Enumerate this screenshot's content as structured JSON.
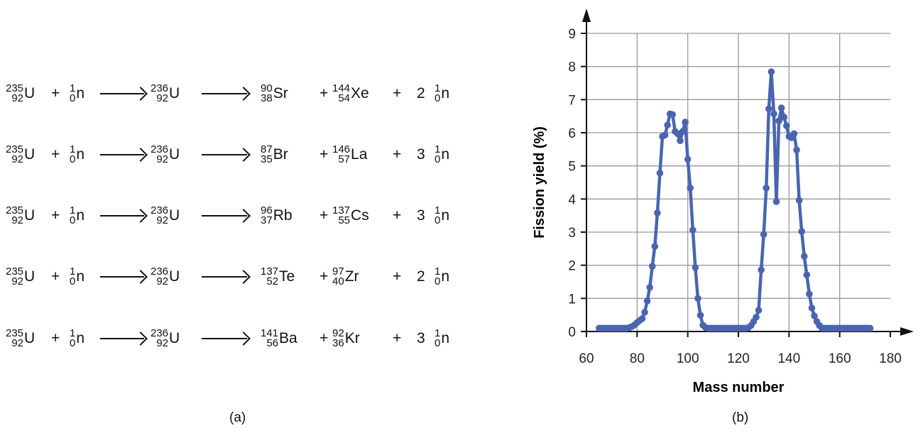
{
  "panel_a": {
    "caption": "(a)",
    "equations": [
      {
        "target": {
          "mass": "235",
          "atomic": "92",
          "symbol": "U"
        },
        "projectile": {
          "mass": "1",
          "atomic": "0",
          "symbol": "n"
        },
        "compound": {
          "mass": "236",
          "atomic": "92",
          "symbol": "U"
        },
        "product1": {
          "mass": "90",
          "atomic": "38",
          "symbol": "Sr"
        },
        "product2": {
          "mass": "144",
          "atomic": "54",
          "symbol": "Xe"
        },
        "coefficient": "2",
        "neutron": {
          "mass": "1",
          "atomic": "0",
          "symbol": "n"
        },
        "plus": "+"
      },
      {
        "target": {
          "mass": "235",
          "atomic": "92",
          "symbol": "U"
        },
        "projectile": {
          "mass": "1",
          "atomic": "0",
          "symbol": "n"
        },
        "compound": {
          "mass": "236",
          "atomic": "92",
          "symbol": "U"
        },
        "product1": {
          "mass": "87",
          "atomic": "35",
          "symbol": "Br"
        },
        "product2": {
          "mass": "146",
          "atomic": "57",
          "symbol": "La"
        },
        "coefficient": "3",
        "neutron": {
          "mass": "1",
          "atomic": "0",
          "symbol": "n"
        },
        "plus": "+"
      },
      {
        "target": {
          "mass": "235",
          "atomic": "92",
          "symbol": "U"
        },
        "projectile": {
          "mass": "1",
          "atomic": "0",
          "symbol": "n"
        },
        "compound": {
          "mass": "236",
          "atomic": "92",
          "symbol": "U"
        },
        "product1": {
          "mass": "96",
          "atomic": "37",
          "symbol": "Rb"
        },
        "product2": {
          "mass": "137",
          "atomic": "55",
          "symbol": "Cs"
        },
        "coefficient": "3",
        "neutron": {
          "mass": "1",
          "atomic": "0",
          "symbol": "n"
        },
        "plus": "+"
      },
      {
        "target": {
          "mass": "235",
          "atomic": "92",
          "symbol": "U"
        },
        "projectile": {
          "mass": "1",
          "atomic": "0",
          "symbol": "n"
        },
        "compound": {
          "mass": "236",
          "atomic": "92",
          "symbol": "U"
        },
        "product1": {
          "mass": "137",
          "atomic": "52",
          "symbol": "Te"
        },
        "product2": {
          "mass": "97",
          "atomic": "40",
          "symbol": "Zr"
        },
        "coefficient": "2",
        "neutron": {
          "mass": "1",
          "atomic": "0",
          "symbol": "n"
        },
        "plus": "+"
      },
      {
        "target": {
          "mass": "235",
          "atomic": "92",
          "symbol": "U"
        },
        "projectile": {
          "mass": "1",
          "atomic": "0",
          "symbol": "n"
        },
        "compound": {
          "mass": "236",
          "atomic": "92",
          "symbol": "U"
        },
        "product1": {
          "mass": "141",
          "atomic": "56",
          "symbol": "Ba"
        },
        "product2": {
          "mass": "92",
          "atomic": "36",
          "symbol": "Kr"
        },
        "coefficient": "3",
        "neutron": {
          "mass": "1",
          "atomic": "0",
          "symbol": "n"
        },
        "plus": "+"
      }
    ]
  },
  "chart_data": {
    "type": "line",
    "caption": "(b)",
    "xlabel": "Mass number",
    "ylabel": "Fission yield (%)",
    "xlim": [
      60,
      180
    ],
    "ylim": [
      0,
      9
    ],
    "xticks": [
      60,
      80,
      100,
      120,
      140,
      160,
      180
    ],
    "yticks": [
      0,
      1,
      2,
      3,
      4,
      5,
      6,
      7,
      8,
      9
    ],
    "grid": true,
    "color": "#4a65b0",
    "x": [
      65,
      66,
      67,
      68,
      69,
      70,
      71,
      72,
      73,
      74,
      75,
      76,
      77,
      78,
      79,
      80,
      81,
      82,
      83,
      84,
      85,
      86,
      87,
      88,
      89,
      90,
      91,
      92,
      93,
      94,
      95,
      96,
      97,
      98,
      99,
      100,
      101,
      102,
      103,
      104,
      105,
      106,
      107,
      108,
      109,
      110,
      111,
      112,
      113,
      114,
      115,
      116,
      117,
      118,
      119,
      120,
      121,
      122,
      123,
      124,
      125,
      126,
      127,
      128,
      129,
      130,
      131,
      132,
      133,
      134,
      135,
      136,
      137,
      138,
      139,
      140,
      141,
      142,
      143,
      144,
      145,
      146,
      147,
      148,
      149,
      150,
      151,
      152,
      153,
      154,
      155,
      156,
      157,
      158,
      159,
      160,
      161,
      162,
      163,
      164,
      165,
      166,
      167,
      168,
      169,
      170,
      171,
      172
    ],
    "y": [
      0.1,
      0.1,
      0.1,
      0.1,
      0.1,
      0.1,
      0.1,
      0.1,
      0.1,
      0.1,
      0.1,
      0.1,
      0.12,
      0.15,
      0.2,
      0.27,
      0.33,
      0.39,
      0.58,
      0.92,
      1.33,
      1.97,
      2.57,
      3.58,
      4.78,
      5.89,
      5.93,
      6.23,
      6.57,
      6.55,
      6.04,
      5.97,
      5.76,
      6.04,
      6.32,
      5.2,
      4.33,
      3.06,
      1.93,
      1.0,
      0.49,
      0.19,
      0.12,
      0.1,
      0.1,
      0.1,
      0.1,
      0.1,
      0.1,
      0.1,
      0.1,
      0.1,
      0.1,
      0.1,
      0.1,
      0.1,
      0.1,
      0.1,
      0.1,
      0.12,
      0.18,
      0.3,
      0.43,
      0.64,
      1.86,
      2.93,
      4.33,
      6.72,
      7.84,
      6.57,
      3.92,
      6.36,
      6.75,
      6.47,
      6.21,
      5.89,
      5.85,
      5.97,
      5.48,
      3.96,
      3.02,
      2.27,
      1.71,
      1.13,
      0.71,
      0.47,
      0.3,
      0.18,
      0.1,
      0.1,
      0.1,
      0.1,
      0.1,
      0.1,
      0.1,
      0.1,
      0.1,
      0.1,
      0.1,
      0.1,
      0.1,
      0.1,
      0.1,
      0.1,
      0.1,
      0.1,
      0.1,
      0.1
    ]
  }
}
